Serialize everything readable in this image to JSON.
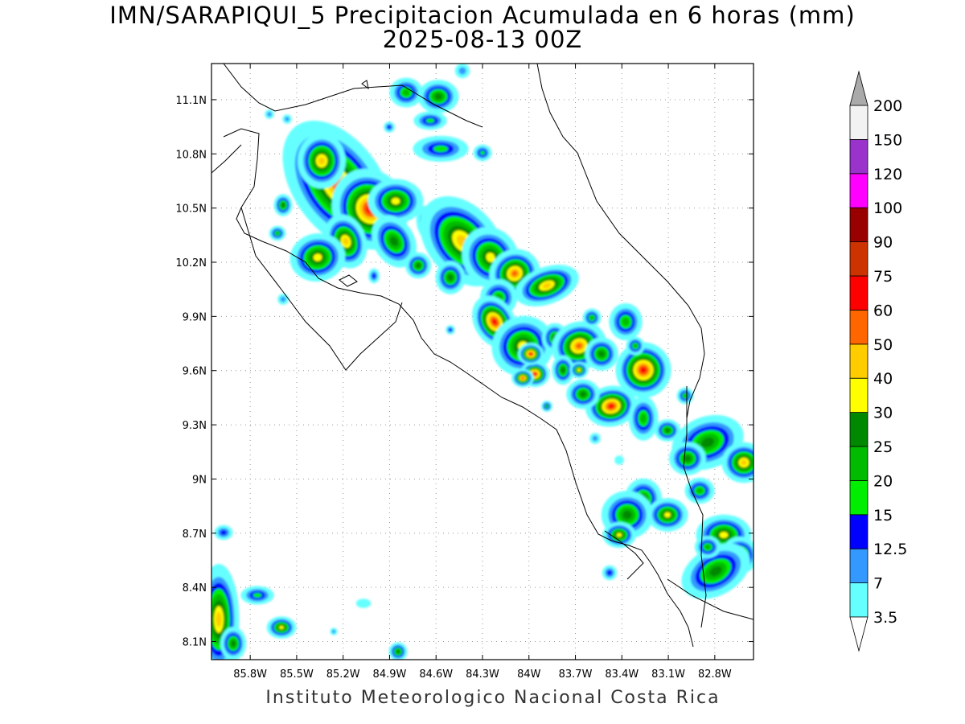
{
  "title": {
    "line1": "IMN/SARAPIQUI_5 Precipitacion Acumulada en 6 horas (mm)",
    "line2": "2025-08-13 00Z"
  },
  "footer": "Instituto Meteorologico Nacional Costa Rica",
  "map": {
    "lon_range": [
      -86.05,
      -82.55
    ],
    "lat_range": [
      8.0,
      11.3
    ],
    "x_ticks": [
      {
        "value": -85.8,
        "label": "85.8W"
      },
      {
        "value": -85.5,
        "label": "85.5W"
      },
      {
        "value": -85.2,
        "label": "85.2W"
      },
      {
        "value": -84.9,
        "label": "84.9W"
      },
      {
        "value": -84.6,
        "label": "84.6W"
      },
      {
        "value": -84.3,
        "label": "84.3W"
      },
      {
        "value": -84.0,
        "label": "84W"
      },
      {
        "value": -83.7,
        "label": "83.7W"
      },
      {
        "value": -83.4,
        "label": "83.4W"
      },
      {
        "value": -83.1,
        "label": "83.1W"
      },
      {
        "value": -82.8,
        "label": "82.8W"
      }
    ],
    "y_ticks": [
      {
        "value": 11.1,
        "label": "11.1N"
      },
      {
        "value": 10.8,
        "label": "10.8N"
      },
      {
        "value": 10.5,
        "label": "10.5N"
      },
      {
        "value": 10.2,
        "label": "10.2N"
      },
      {
        "value": 9.9,
        "label": "9.9N"
      },
      {
        "value": 9.6,
        "label": "9.6N"
      },
      {
        "value": 9.3,
        "label": "9.3N"
      },
      {
        "value": 9.0,
        "label": "9N"
      },
      {
        "value": 8.7,
        "label": "8.7N"
      },
      {
        "value": 8.4,
        "label": "8.4N"
      },
      {
        "value": 8.1,
        "label": "8.1N"
      }
    ],
    "grid": true
  },
  "colorbar": {
    "levels": [
      "3.5",
      "7",
      "12.5",
      "15",
      "20",
      "25",
      "30",
      "40",
      "50",
      "60",
      "75",
      "90",
      "100",
      "120",
      "150",
      "200"
    ],
    "colors": [
      "#66ffff",
      "#3399ff",
      "#0000ff",
      "#00ee00",
      "#00bb00",
      "#008800",
      "#ffff00",
      "#ffcc00",
      "#ff6600",
      "#ff0000",
      "#cc3300",
      "#990000",
      "#ff00ff",
      "#9933cc",
      "#f2f2f2"
    ],
    "over_color": "#aaaaaa"
  }
}
